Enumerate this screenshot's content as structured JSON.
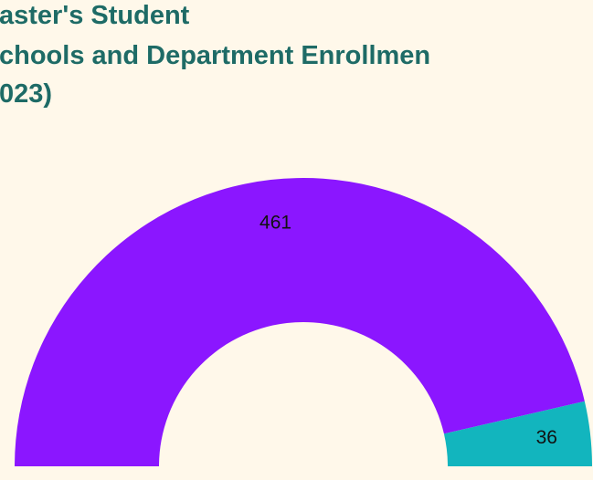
{
  "chart_data": {
    "type": "donut",
    "semicircle": true,
    "title": [
      "aster's Student",
      "chools and Department Enrollmen",
      "023)"
    ],
    "values": [
      461,
      36
    ],
    "colors": [
      "#8b16ff",
      "#12b5be"
    ]
  }
}
